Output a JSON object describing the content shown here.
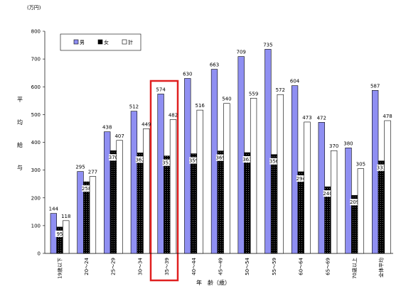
{
  "chart_data": {
    "type": "bar",
    "unit": "(万円)",
    "ylabel": "平均給与",
    "xlabel": "年　齢（歳）",
    "categories": [
      "19歳以下",
      "20～24",
      "25～29",
      "30～34",
      "35～39",
      "40～44",
      "45～49",
      "50～54",
      "55～59",
      "60～64",
      "65～69",
      "70歳以上",
      "全体平均"
    ],
    "series": [
      {
        "name": "男",
        "color": "#8f8ff2",
        "values": [
          144,
          295,
          438,
          512,
          574,
          630,
          663,
          709,
          735,
          604,
          472,
          380,
          587
        ]
      },
      {
        "name": "女",
        "color": "#000000",
        "values": [
          95,
          258,
          370,
          362,
          351,
          359,
          369,
          363,
          356,
          294,
          240,
          209,
          333
        ]
      },
      {
        "name": "計",
        "color": "#ffffff",
        "values": [
          118,
          277,
          407,
          449,
          482,
          516,
          540,
          559,
          572,
          473,
          370,
          305,
          478
        ]
      }
    ],
    "ylim": [
      0,
      800
    ],
    "yticks": [
      0,
      100,
      200,
      300,
      400,
      500,
      600,
      700,
      800
    ]
  }
}
